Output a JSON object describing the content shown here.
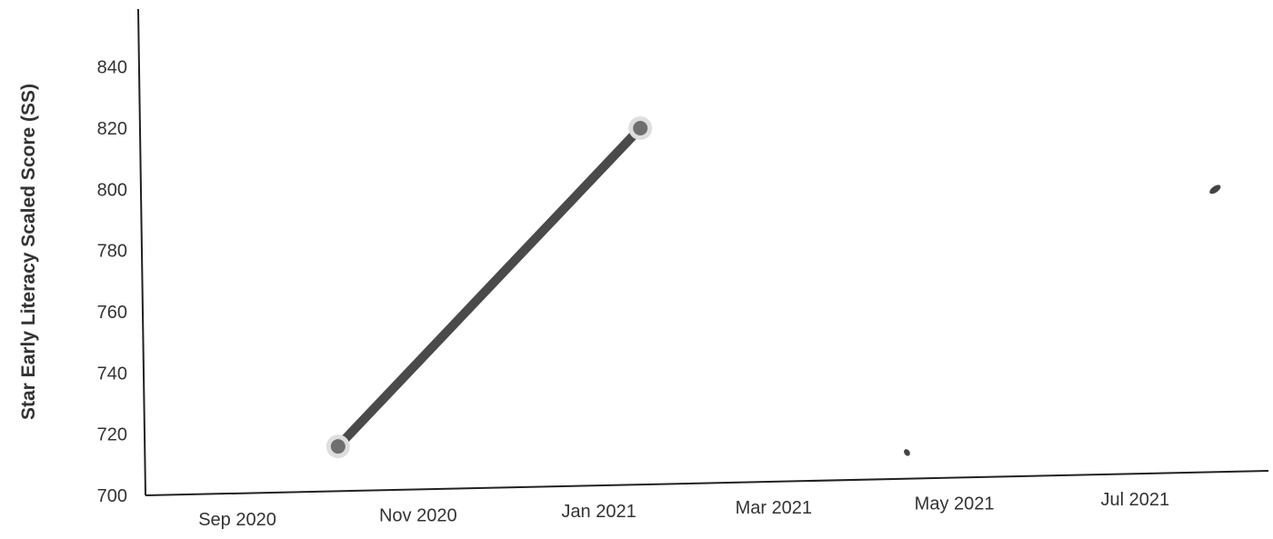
{
  "chart_data": {
    "type": "line",
    "ylabel": "Star Early Literacy Scaled Score (SS)",
    "xlabel": "",
    "title": "",
    "x_ticks": [
      "Sep 2020",
      "Nov 2020",
      "Jan 2021",
      "Mar 2021",
      "May 2021",
      "Jul 2021"
    ],
    "y_ticks": [
      700,
      720,
      740,
      760,
      780,
      800,
      820,
      840
    ],
    "ylim": [
      700,
      850
    ],
    "xlim": [
      "2020-08-01",
      "2021-08-15"
    ],
    "grid": false,
    "series": [
      {
        "color": "#555555",
        "points": [
          {
            "x": "2020-10-05",
            "y": 716
          },
          {
            "x": "2021-01-15",
            "y": 820
          }
        ]
      }
    ],
    "stray_marks": [
      {
        "x": "2021-04-15",
        "y": 714
      },
      {
        "x": "2021-07-28",
        "y": 800
      }
    ]
  }
}
